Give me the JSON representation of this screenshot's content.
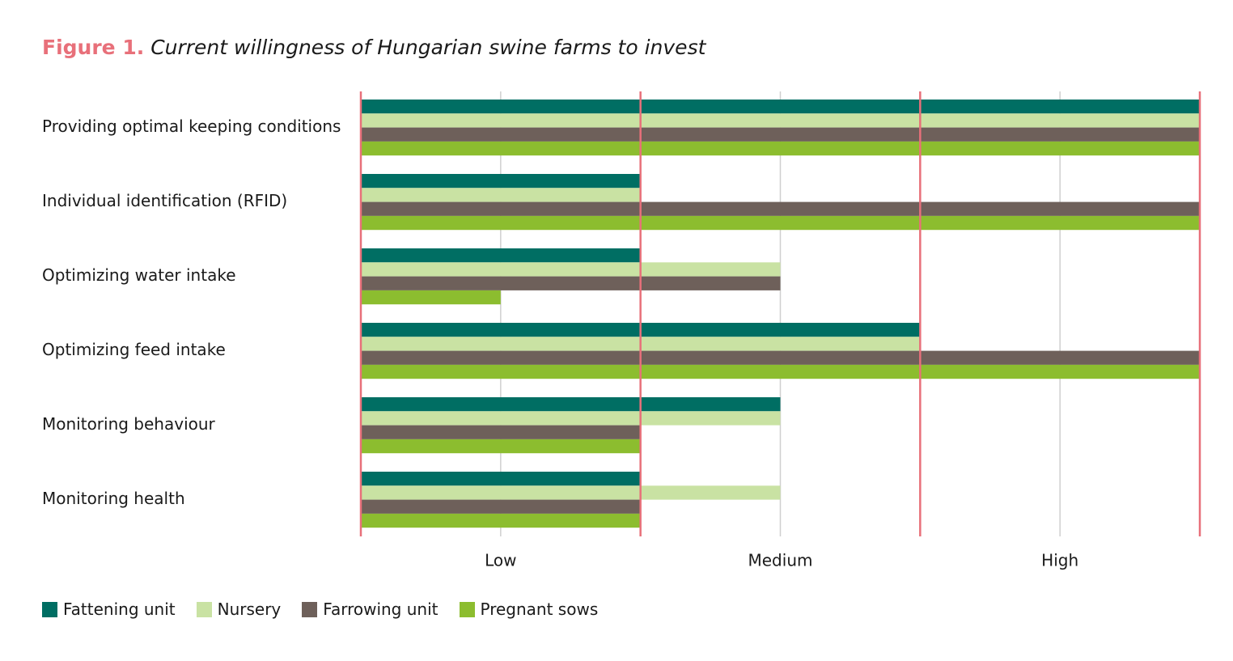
{
  "figure": {
    "label": "Figure 1.",
    "caption": "Current willingness of Hungarian swine farms to invest"
  },
  "colors": {
    "accent": "#e8707a",
    "grid": "#cfcfcf",
    "Fattening unit": "#006e63",
    "Nursery": "#c9e2a3",
    "Farrowing unit": "#6e605a",
    "Pregnant sows": "#8cbd2f"
  },
  "chart_data": {
    "type": "bar",
    "orientation": "horizontal",
    "title": "Current willingness of Hungarian swine farms to invest",
    "categories": [
      "Providing optimal keeping conditions",
      "Individual identification (RFID)",
      "Optimizing water intake",
      "Optimizing feed intake",
      "Monitoring behaviour",
      "Monitoring health"
    ],
    "series": [
      {
        "name": "Fattening unit",
        "values": [
          6,
          2,
          2,
          4,
          3,
          2
        ]
      },
      {
        "name": "Nursery",
        "values": [
          6,
          2,
          3,
          4,
          3,
          3
        ]
      },
      {
        "name": "Farrowing unit",
        "values": [
          6,
          6,
          3,
          6,
          2,
          2
        ]
      },
      {
        "name": "Pregnant sows",
        "values": [
          6,
          6,
          1,
          6,
          2,
          2
        ]
      }
    ],
    "xlim": [
      0,
      6
    ],
    "major_ticks": [
      0,
      2,
      4,
      6
    ],
    "minor_gridlines": [
      1,
      3,
      5
    ],
    "tick_labels": [
      {
        "label": "Low",
        "at": 1
      },
      {
        "label": "Medium",
        "at": 3
      },
      {
        "label": "High",
        "at": 5
      }
    ],
    "xlabel": "",
    "ylabel": "",
    "legend": "bottom-left"
  }
}
